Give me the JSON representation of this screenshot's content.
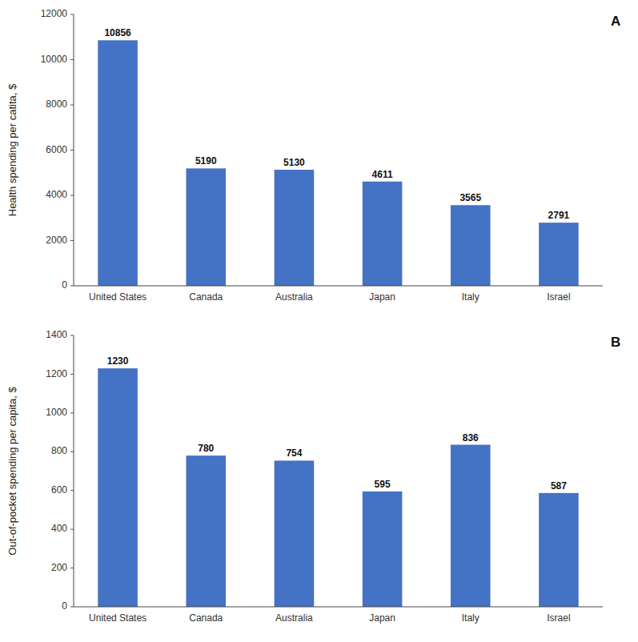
{
  "chart_data": [
    {
      "type": "bar",
      "title": "A",
      "categories": [
        "United States",
        "Canada",
        "Australia",
        "Japan",
        "Italy",
        "Israel"
      ],
      "values": [
        10856,
        5190,
        5130,
        4611,
        3565,
        2791
      ],
      "y_label": "Health spending per catita, $",
      "color": "#4472C4",
      "ylim": [
        0,
        12000
      ],
      "yticks": [
        0,
        2000,
        4000,
        6000,
        8000,
        10000,
        12000
      ],
      "data_labels": true,
      "grid": false
    },
    {
      "type": "bar",
      "title": "B",
      "categories": [
        "United States",
        "Canada",
        "Australia",
        "Japan",
        "Italy",
        "Israel"
      ],
      "values": [
        1230,
        780,
        754,
        595,
        836,
        587
      ],
      "y_label": "Out-of-pocket spending per capita, $",
      "color": "#4472C4",
      "ylim": [
        0,
        1400
      ],
      "yticks": [
        0,
        200,
        400,
        600,
        800,
        1000,
        1200,
        1400
      ],
      "data_labels": true,
      "grid": false
    }
  ]
}
